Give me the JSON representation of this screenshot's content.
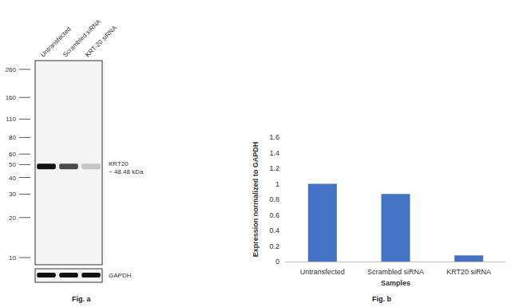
{
  "blot": {
    "lanes": [
      "Untransfected",
      "Scrambled siRNA",
      "KRT-20 siRNA"
    ],
    "markers": [
      260,
      160,
      110,
      80,
      60,
      50,
      40,
      30,
      20,
      10
    ],
    "band_label": "KRT20",
    "band_size_label": "~ 48.48 kDa",
    "band_kda": 48.48,
    "band_intensity": [
      1,
      0.75,
      0.2
    ],
    "loading_control": "GAPDH",
    "caption": "Fig. a"
  },
  "chart_data": {
    "type": "bar",
    "caption": "Fig. b",
    "x_label": "Samples",
    "y_label": "Expression normalized to GAPDH",
    "categories": [
      "Untransfected",
      "Scrambled siRNA",
      "KRT20 siRNA"
    ],
    "values": [
      1,
      0.87,
      0.08
    ],
    "color": "#4472c4",
    "ylim": [
      0,
      1.6
    ],
    "yticks": [
      0,
      0.2,
      0.4,
      0.6,
      0.8,
      1,
      1.2,
      1.4,
      1.6
    ],
    "grid": false
  }
}
